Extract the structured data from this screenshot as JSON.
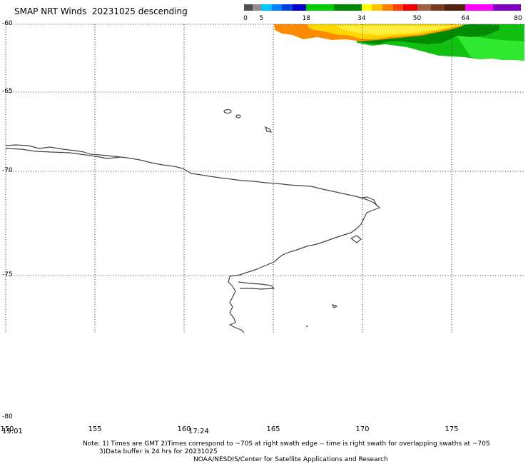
{
  "header": {
    "title": "SMAP NRT Winds  20231025 descending"
  },
  "colorbar": {
    "tick_labels": [
      "0",
      "5",
      "18",
      "34",
      "50",
      "64",
      "80"
    ],
    "ticks": [
      0,
      5,
      18,
      34,
      50,
      64,
      80
    ],
    "segments": [
      {
        "from": 0,
        "to": 2.5,
        "color": "#505050"
      },
      {
        "from": 2.5,
        "to": 5,
        "color": "#909090"
      },
      {
        "from": 5,
        "to": 8,
        "color": "#00c8ff"
      },
      {
        "from": 8,
        "to": 11,
        "color": "#0080ff"
      },
      {
        "from": 11,
        "to": 14,
        "color": "#0040e0"
      },
      {
        "from": 14,
        "to": 18,
        "color": "#0000c8"
      },
      {
        "from": 18,
        "to": 26,
        "color": "#00cc00"
      },
      {
        "from": 26,
        "to": 34,
        "color": "#008800"
      },
      {
        "from": 34,
        "to": 37,
        "color": "#ffff00"
      },
      {
        "from": 37,
        "to": 40,
        "color": "#ffc000"
      },
      {
        "from": 40,
        "to": 43,
        "color": "#ff8000"
      },
      {
        "from": 43,
        "to": 46,
        "color": "#ff4000"
      },
      {
        "from": 46,
        "to": 50,
        "color": "#ee0000"
      },
      {
        "from": 50,
        "to": 54,
        "color": "#a06040"
      },
      {
        "from": 54,
        "to": 58,
        "color": "#7a3a20"
      },
      {
        "from": 58,
        "to": 64,
        "color": "#502010"
      },
      {
        "from": 64,
        "to": 72,
        "color": "#ff00ff"
      },
      {
        "from": 72,
        "to": 80,
        "color": "#8000c0"
      }
    ]
  },
  "map": {
    "lon_labels": [
      "150",
      "155",
      "160",
      "165",
      "170",
      "175"
    ],
    "lon_values": [
      150,
      155,
      160,
      165,
      170,
      175
    ],
    "lat_labels": [
      "-60",
      "-65",
      "-70",
      "-75",
      "-80"
    ],
    "lat_values": [
      -60,
      -65,
      -70,
      -75,
      -80
    ],
    "time_labels": [
      "19:01",
      "17:24"
    ],
    "swath_colors": {
      "orange": "#ff8c00",
      "yellow": "#ffe000",
      "dark_green": "#009000",
      "green": "#10c810",
      "light_green": "#30e830"
    }
  },
  "footer": {
    "note_line1": "Note: 1) Times are GMT 2)Times correspond to ~70S at right swath edge -- time is right swath for overlapping swaths at ~70S",
    "note_line2": "        3)Data buffer is 24 hrs for 20231025",
    "credit": "NOAA/NESDIS/Center for Satellite Applications and Research"
  }
}
